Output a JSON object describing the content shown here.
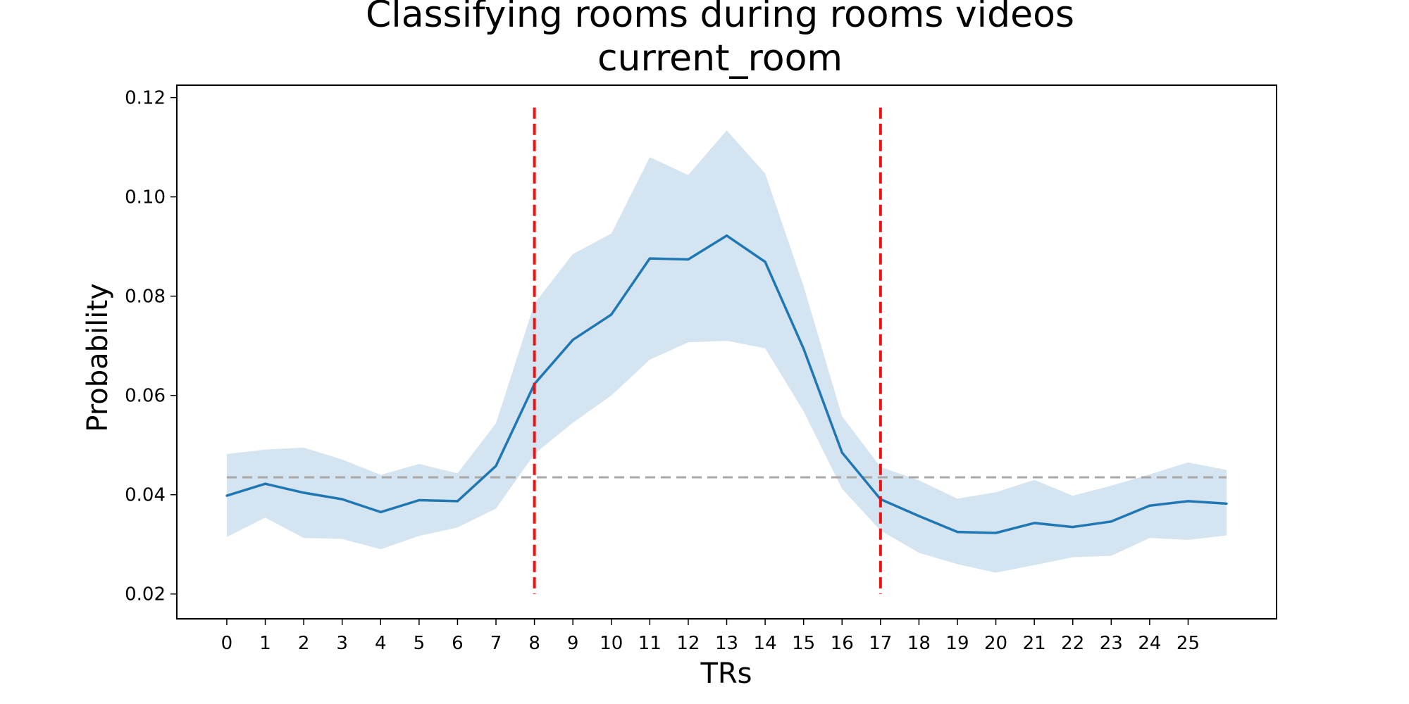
{
  "chart_data": {
    "type": "line",
    "title": "Classifying rooms during rooms videos",
    "subtitle": "current_room",
    "xlabel": "TRs",
    "ylabel": "Probability",
    "x": [
      0,
      1,
      2,
      3,
      4,
      5,
      6,
      7,
      8,
      9,
      10,
      11,
      12,
      13,
      14,
      15,
      16,
      17,
      18,
      19,
      20,
      21,
      22,
      23,
      24,
      25,
      26
    ],
    "xticks": [
      "0",
      "1",
      "2",
      "3",
      "4",
      "5",
      "6",
      "7",
      "8",
      "9",
      "10",
      "11",
      "12",
      "13",
      "14",
      "15",
      "16",
      "17",
      "18",
      "19",
      "20",
      "21",
      "22",
      "23",
      "24",
      "25"
    ],
    "yticks": [
      "0.02",
      "0.04",
      "0.06",
      "0.08",
      "0.10",
      "0.12"
    ],
    "xlim": [
      -1.3,
      27.3
    ],
    "ylim": [
      0.015,
      0.1225
    ],
    "grid": false,
    "series": [
      {
        "values": [
          0.0398,
          0.0422,
          0.0404,
          0.0391,
          0.0365,
          0.0389,
          0.0387,
          0.0458,
          0.0623,
          0.0712,
          0.0763,
          0.0876,
          0.0874,
          0.0922,
          0.0869,
          0.0694,
          0.0485,
          0.0391,
          0.0357,
          0.0325,
          0.0323,
          0.0343,
          0.0335,
          0.0346,
          0.0378,
          0.0387,
          0.0382
        ],
        "lower": [
          0.0315,
          0.0354,
          0.0313,
          0.0311,
          0.029,
          0.0317,
          0.0334,
          0.0372,
          0.0482,
          0.0545,
          0.06,
          0.0672,
          0.0707,
          0.071,
          0.0695,
          0.0568,
          0.0412,
          0.0328,
          0.0283,
          0.026,
          0.0243,
          0.0258,
          0.0274,
          0.0277,
          0.0313,
          0.0309,
          0.0318
        ],
        "upper": [
          0.0482,
          0.0491,
          0.0495,
          0.0471,
          0.044,
          0.0462,
          0.0443,
          0.0544,
          0.0785,
          0.0885,
          0.0926,
          0.108,
          0.1044,
          0.1134,
          0.1047,
          0.082,
          0.0558,
          0.0456,
          0.0429,
          0.0392,
          0.0405,
          0.043,
          0.0398,
          0.0418,
          0.0441,
          0.0465,
          0.045
        ],
        "color": "#1f77b4",
        "band_color": "#d4e4f0"
      }
    ],
    "chance_level": {
      "y": 0.0435,
      "x_range": [
        0,
        26
      ],
      "color": "#a8a8a8"
    },
    "event_lines": [
      {
        "x": 8,
        "y_range": [
          0.02,
          0.118
        ],
        "color": "#ee1111"
      },
      {
        "x": 17,
        "y_range": [
          0.02,
          0.118
        ],
        "color": "#ee1111"
      }
    ]
  }
}
